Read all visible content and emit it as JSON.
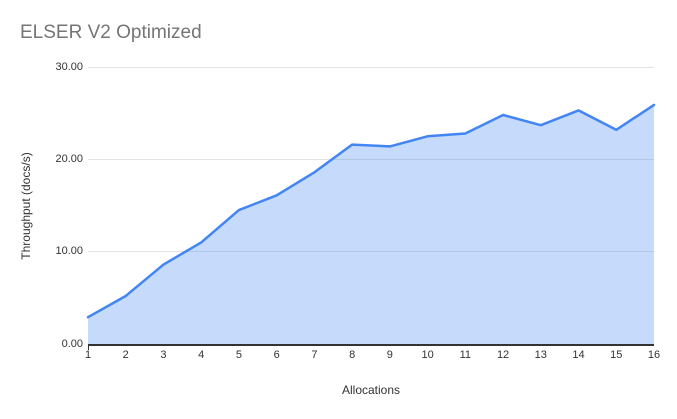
{
  "title": "ELSER V2 Optimized",
  "axes": {
    "x_title": "Allocations",
    "y_title": "Throughput (docs/s)"
  },
  "colors": {
    "line": "#4285f4",
    "fill": "rgba(66,133,244,0.30)",
    "grid": "#e3e3e3",
    "axis_line": "#333333",
    "title_text": "#757575",
    "tick_text": "#333333"
  },
  "chart_data": {
    "type": "area",
    "title": "ELSER V2 Optimized",
    "xlabel": "Allocations",
    "ylabel": "Throughput (docs/s)",
    "categories": [
      "1",
      "2",
      "3",
      "4",
      "5",
      "6",
      "7",
      "8",
      "9",
      "10",
      "11",
      "12",
      "13",
      "14",
      "15",
      "16"
    ],
    "series": [
      {
        "name": "Throughput (docs/s)",
        "values": [
          2.9,
          5.2,
          8.6,
          11.0,
          14.5,
          16.1,
          18.6,
          21.6,
          21.4,
          22.5,
          22.8,
          24.8,
          23.7,
          25.3,
          23.2,
          25.9
        ]
      }
    ],
    "ylim": [
      0,
      30
    ],
    "yticks": [
      0,
      10,
      20,
      30
    ],
    "ytick_labels": [
      "0.00",
      "10.00",
      "20.00",
      "30.00"
    ],
    "grid": "horizontal-only",
    "legend": "none"
  }
}
